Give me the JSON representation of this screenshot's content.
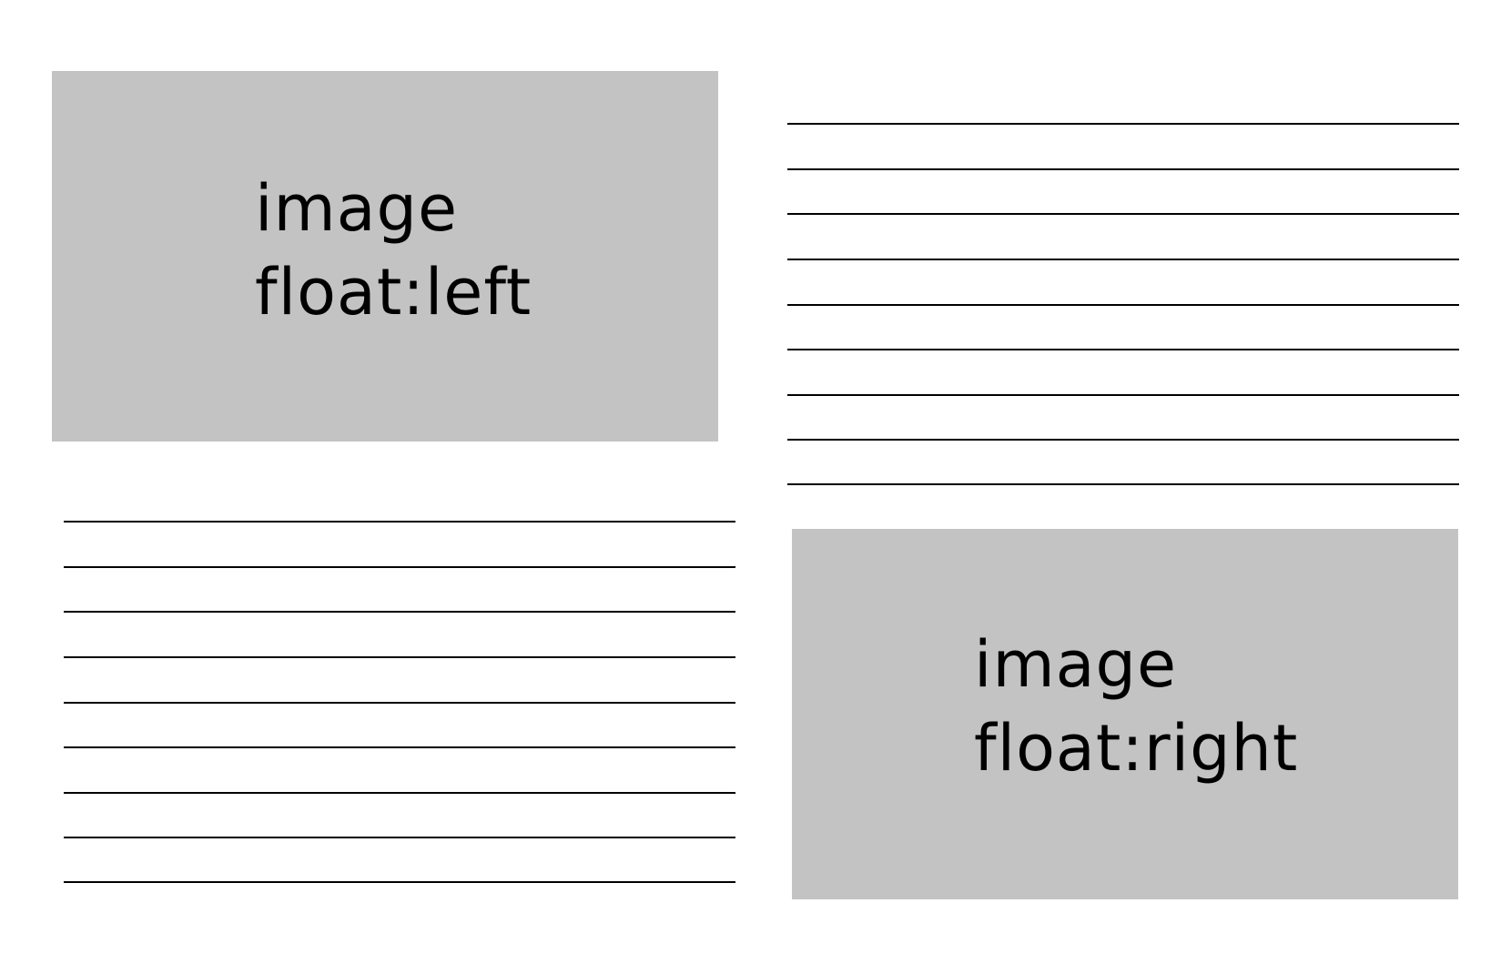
{
  "left_image": {
    "line1": "image",
    "line2": "float:left"
  },
  "right_image": {
    "line1": "image",
    "line2": "float:right"
  },
  "text_lines": {
    "top_right_count": 9,
    "bottom_left_count": 9
  },
  "colors": {
    "image_placeholder": "#c3c3c3",
    "text_line": "#000000",
    "background": "#ffffff"
  }
}
